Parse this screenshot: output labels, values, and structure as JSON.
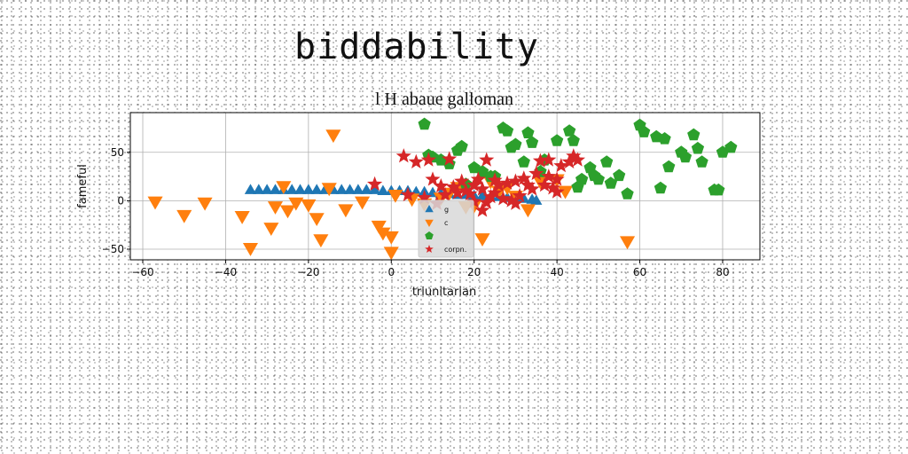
{
  "page": {
    "heading": "biddability"
  },
  "chart_data": {
    "type": "scatter",
    "title": "l H abaue galloman",
    "xlabel": "triunitarian",
    "ylabel": "fameful",
    "xlim": [
      -63,
      89
    ],
    "ylim": [
      -61,
      91
    ],
    "xticks": [
      -60,
      -40,
      -20,
      0,
      20,
      40,
      60,
      80
    ],
    "yticks": [
      -50,
      0,
      50
    ],
    "grid": true,
    "legend": {
      "placement": "lower center",
      "entries": [
        "g",
        "c",
        "",
        "corpn."
      ]
    },
    "series": [
      {
        "name": "g",
        "marker": "triangle-up",
        "color": "#1f77b4",
        "points": [
          [
            -34,
            11
          ],
          [
            -32,
            11
          ],
          [
            -30,
            11
          ],
          [
            -28,
            11
          ],
          [
            -26,
            11
          ],
          [
            -24,
            11
          ],
          [
            -22,
            11
          ],
          [
            -20,
            11
          ],
          [
            -18,
            11
          ],
          [
            -16,
            11
          ],
          [
            -14,
            11
          ],
          [
            -12,
            11
          ],
          [
            -10,
            11
          ],
          [
            -8,
            11
          ],
          [
            -6,
            11
          ],
          [
            -4,
            11
          ],
          [
            -2,
            10
          ],
          [
            0,
            10
          ],
          [
            2,
            10
          ],
          [
            4,
            10
          ],
          [
            6,
            9
          ],
          [
            8,
            9
          ],
          [
            10,
            8
          ],
          [
            12,
            7
          ],
          [
            14,
            7
          ],
          [
            16,
            6
          ],
          [
            18,
            6
          ],
          [
            20,
            5
          ],
          [
            22,
            5
          ],
          [
            24,
            4
          ],
          [
            26,
            4
          ],
          [
            28,
            3
          ],
          [
            30,
            3
          ],
          [
            32,
            2
          ],
          [
            34,
            1
          ],
          [
            35,
            0
          ]
        ]
      },
      {
        "name": "c",
        "marker": "triangle-down",
        "color": "#ff7f0e",
        "points": [
          [
            -57,
            -1
          ],
          [
            -50,
            -15
          ],
          [
            -45,
            -2
          ],
          [
            -36,
            -16
          ],
          [
            -34,
            -49
          ],
          [
            -29,
            -28
          ],
          [
            -28,
            -6
          ],
          [
            -26,
            15
          ],
          [
            -25,
            -10
          ],
          [
            -23,
            -2
          ],
          [
            -20,
            -4
          ],
          [
            -18,
            -18
          ],
          [
            -17,
            -40
          ],
          [
            -15,
            13
          ],
          [
            -14,
            68
          ],
          [
            -11,
            -9
          ],
          [
            -7,
            -1
          ],
          [
            -3,
            -26
          ],
          [
            -2,
            -33
          ],
          [
            0,
            -37
          ],
          [
            0,
            -53
          ],
          [
            1,
            6
          ],
          [
            5,
            2
          ],
          [
            8,
            -3
          ],
          [
            12,
            3
          ],
          [
            14,
            8
          ],
          [
            16,
            14
          ],
          [
            18,
            -6
          ],
          [
            20,
            -5
          ],
          [
            22,
            -39
          ],
          [
            24,
            20
          ],
          [
            26,
            10
          ],
          [
            28,
            14
          ],
          [
            30,
            5
          ],
          [
            33,
            -9
          ],
          [
            36,
            20
          ],
          [
            40,
            22
          ],
          [
            42,
            10
          ],
          [
            57,
            -42
          ]
        ]
      },
      {
        "name": "",
        "marker": "pentagon",
        "color": "#2ca02c",
        "points": [
          [
            8,
            79
          ],
          [
            9,
            47
          ],
          [
            10,
            45
          ],
          [
            12,
            42
          ],
          [
            14,
            38
          ],
          [
            16,
            52
          ],
          [
            17,
            56
          ],
          [
            18,
            17
          ],
          [
            20,
            34
          ],
          [
            22,
            30
          ],
          [
            24,
            25
          ],
          [
            25,
            25
          ],
          [
            27,
            75
          ],
          [
            28,
            72
          ],
          [
            29,
            55
          ],
          [
            30,
            58
          ],
          [
            32,
            40
          ],
          [
            33,
            70
          ],
          [
            34,
            60
          ],
          [
            36,
            30
          ],
          [
            37,
            42
          ],
          [
            40,
            62
          ],
          [
            43,
            72
          ],
          [
            44,
            62
          ],
          [
            45,
            14
          ],
          [
            46,
            22
          ],
          [
            48,
            34
          ],
          [
            49,
            26
          ],
          [
            50,
            22
          ],
          [
            52,
            40
          ],
          [
            53,
            18
          ],
          [
            55,
            26
          ],
          [
            57,
            7
          ],
          [
            60,
            78
          ],
          [
            61,
            71
          ],
          [
            64,
            66
          ],
          [
            66,
            64
          ],
          [
            65,
            13
          ],
          [
            67,
            35
          ],
          [
            70,
            50
          ],
          [
            71,
            45
          ],
          [
            73,
            68
          ],
          [
            74,
            54
          ],
          [
            75,
            40
          ],
          [
            78,
            11
          ],
          [
            79,
            11
          ],
          [
            80,
            50
          ],
          [
            82,
            55
          ]
        ]
      },
      {
        "name": "corpn.",
        "marker": "star",
        "color": "#d62728",
        "points": [
          [
            -4,
            17
          ],
          [
            3,
            46
          ],
          [
            4,
            6
          ],
          [
            6,
            40
          ],
          [
            8,
            3
          ],
          [
            9,
            42
          ],
          [
            10,
            22
          ],
          [
            11,
            -3
          ],
          [
            12,
            15
          ],
          [
            13,
            6
          ],
          [
            14,
            43
          ],
          [
            15,
            14
          ],
          [
            16,
            8
          ],
          [
            17,
            20
          ],
          [
            18,
            10
          ],
          [
            19,
            7
          ],
          [
            20,
            16
          ],
          [
            20,
            -1
          ],
          [
            21,
            22
          ],
          [
            22,
            12
          ],
          [
            22,
            -10
          ],
          [
            23,
            42
          ],
          [
            23,
            -2
          ],
          [
            24,
            4
          ],
          [
            25,
            21
          ],
          [
            25,
            8
          ],
          [
            26,
            16
          ],
          [
            27,
            2
          ],
          [
            28,
            18
          ],
          [
            29,
            0
          ],
          [
            30,
            20
          ],
          [
            30,
            -3
          ],
          [
            31,
            5
          ],
          [
            32,
            23
          ],
          [
            33,
            16
          ],
          [
            34,
            12
          ],
          [
            35,
            28
          ],
          [
            36,
            41
          ],
          [
            37,
            16
          ],
          [
            38,
            42
          ],
          [
            38,
            25
          ],
          [
            39,
            13
          ],
          [
            40,
            22
          ],
          [
            40,
            9
          ],
          [
            41,
            36
          ],
          [
            43,
            40
          ],
          [
            44,
            46
          ],
          [
            45,
            42
          ]
        ]
      }
    ]
  }
}
